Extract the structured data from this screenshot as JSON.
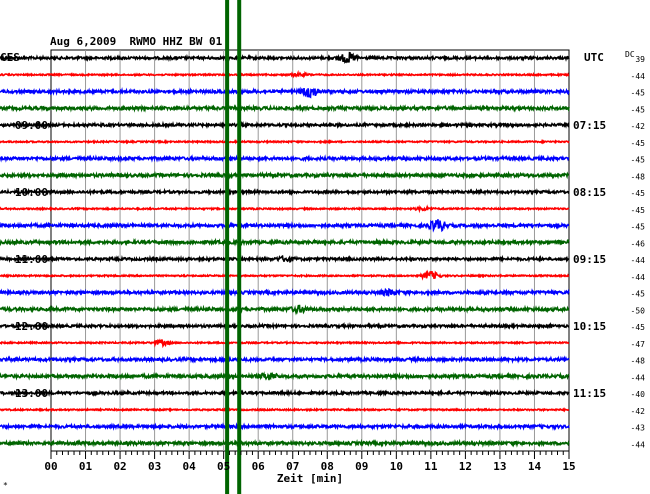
{
  "header": {
    "title": "Aug 6,2009  RWMO HHZ BW 01"
  },
  "corner": {
    "left": "CES",
    "right": "UTC",
    "dc": "DC"
  },
  "footer": {
    "xlabel": "Zeit [min]",
    "mark": "*"
  },
  "chart_data": {
    "type": "line",
    "title": "Aug 6,2009  RWMO HHZ BW 01",
    "xlabel": "Zeit [min]",
    "ylabel": "",
    "xlim": [
      0,
      15
    ],
    "xticks": [
      "00",
      "01",
      "02",
      "03",
      "04",
      "05",
      "06",
      "07",
      "08",
      "09",
      "10",
      "11",
      "12",
      "13",
      "14",
      "15"
    ],
    "grid": true,
    "trace_colors": [
      "#000000",
      "#ff0000",
      "#0000ff",
      "#006400"
    ],
    "trace_count": 24,
    "dc_values": [
      39,
      -44,
      -45,
      -45,
      -42,
      -45,
      -45,
      -48,
      -45,
      -45,
      -45,
      -46,
      -44,
      -44,
      -45,
      -50,
      -45,
      -47,
      -48,
      -44,
      -40,
      -42,
      -43,
      -44
    ],
    "left_time_labels": [
      {
        "row": 4,
        "label": "09:00"
      },
      {
        "row": 8,
        "label": "10:00"
      },
      {
        "row": 12,
        "label": "11:00"
      },
      {
        "row": 16,
        "label": "12:00"
      },
      {
        "row": 20,
        "label": "13:00"
      }
    ],
    "right_time_labels": [
      {
        "row": 4,
        "label": "07:15"
      },
      {
        "row": 8,
        "label": "08:15"
      },
      {
        "row": 12,
        "label": "09:15"
      },
      {
        "row": 16,
        "label": "10:15"
      },
      {
        "row": 20,
        "label": "11:15"
      }
    ],
    "events": [
      {
        "minute": 8.6,
        "row": 0,
        "amp": 2
      },
      {
        "minute": 7.2,
        "row": 1,
        "amp": 1
      },
      {
        "minute": 7.5,
        "row": 2,
        "amp": 2
      },
      {
        "minute": 10.8,
        "row": 9,
        "amp": 1
      },
      {
        "minute": 11.2,
        "row": 10,
        "amp": 2
      },
      {
        "minute": 6.8,
        "row": 12,
        "amp": 1
      },
      {
        "minute": 11.0,
        "row": 13,
        "amp": 3
      },
      {
        "minute": 9.8,
        "row": 14,
        "amp": 1
      },
      {
        "minute": 7.2,
        "row": 15,
        "amp": 1
      },
      {
        "minute": 3.2,
        "row": 17,
        "amp": 2
      },
      {
        "minute": 6.3,
        "row": 19,
        "amp": 1
      }
    ],
    "vertical_markers": {
      "minutes": [
        5.1,
        5.45
      ],
      "color": "#006400"
    }
  }
}
